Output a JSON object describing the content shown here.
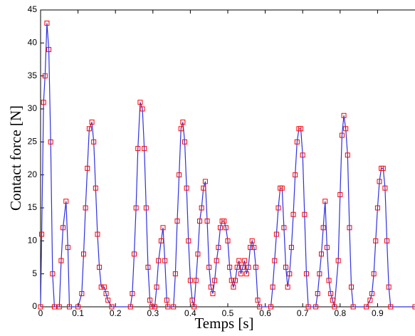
{
  "chart_data": {
    "type": "line",
    "x_label": "Temps [s]",
    "y_label": "Contact force [N]",
    "color": "#3030e0",
    "marker_color": "#ff0000",
    "xlim": [
      0,
      1
    ],
    "ylim": [
      0,
      45
    ],
    "xticks": [
      0,
      0.1,
      0.2,
      0.3,
      0.4,
      0.5,
      0.6,
      0.7,
      0.8,
      0.9
    ],
    "yticks": [
      0,
      5,
      10,
      15,
      20,
      25,
      30,
      35,
      40,
      45
    ],
    "x": [
      0,
      0.003,
      0.008,
      0.012,
      0.017,
      0.022,
      0.027,
      0.032,
      0.037,
      0.05,
      0.055,
      0.06,
      0.068,
      0.073,
      0.077,
      0.1,
      0.11,
      0.115,
      0.12,
      0.125,
      0.13,
      0.137,
      0.142,
      0.147,
      0.152,
      0.157,
      0.162,
      0.17,
      0.175,
      0.18,
      0.19,
      0.24,
      0.245,
      0.25,
      0.255,
      0.26,
      0.266,
      0.272,
      0.277,
      0.282,
      0.287,
      0.292,
      0.297,
      0.305,
      0.31,
      0.315,
      0.322,
      0.327,
      0.332,
      0.337,
      0.34,
      0.355,
      0.36,
      0.365,
      0.37,
      0.375,
      0.38,
      0.385,
      0.39,
      0.395,
      0.4,
      0.405,
      0.41,
      0.415,
      0.42,
      0.425,
      0.43,
      0.435,
      0.44,
      0.445,
      0.45,
      0.455,
      0.46,
      0.465,
      0.47,
      0.475,
      0.48,
      0.485,
      0.49,
      0.495,
      0.5,
      0.505,
      0.51,
      0.515,
      0.52,
      0.525,
      0.53,
      0.535,
      0.54,
      0.545,
      0.55,
      0.555,
      0.56,
      0.565,
      0.57,
      0.575,
      0.58,
      0.585,
      0.615,
      0.62,
      0.625,
      0.63,
      0.635,
      0.64,
      0.645,
      0.65,
      0.655,
      0.66,
      0.665,
      0.67,
      0.675,
      0.68,
      0.685,
      0.69,
      0.695,
      0.7,
      0.705,
      0.71,
      0.715,
      0.735,
      0.74,
      0.745,
      0.75,
      0.755,
      0.76,
      0.765,
      0.77,
      0.775,
      0.78,
      0.785,
      0.795,
      0.8,
      0.805,
      0.81,
      0.815,
      0.82,
      0.825,
      0.83,
      0.835,
      0.87,
      0.88,
      0.885,
      0.89,
      0.895,
      0.9,
      0.905,
      0.91,
      0.915,
      0.92,
      0.925,
      0.93,
      0.935,
      1
    ],
    "values": [
      0,
      11,
      31,
      35,
      43,
      39,
      25,
      5,
      0,
      0,
      7,
      12,
      16,
      9,
      0,
      0,
      2,
      8,
      15,
      21,
      27,
      28,
      25,
      18,
      11,
      6,
      3,
      3,
      2,
      1,
      0,
      0,
      2,
      8,
      15,
      24,
      31,
      30,
      24,
      15,
      6,
      1,
      0,
      0,
      3,
      7,
      10,
      12,
      7,
      1,
      0,
      0,
      5,
      13,
      20,
      27,
      28,
      25,
      18,
      10,
      4,
      1,
      0,
      4,
      8,
      13,
      15,
      18,
      19,
      13,
      6,
      3,
      2,
      4,
      7,
      9,
      12,
      13,
      13,
      12,
      10,
      6,
      4,
      3,
      4,
      6,
      7,
      5,
      6,
      7,
      5,
      6,
      9,
      10,
      9,
      6,
      1,
      0,
      0,
      3,
      7,
      11,
      15,
      18,
      18,
      12,
      6,
      3,
      5,
      9,
      14,
      20,
      25,
      27,
      27,
      23,
      14,
      5,
      0,
      0,
      2,
      5,
      8,
      12,
      16,
      9,
      4,
      2,
      1,
      0,
      7,
      17,
      26,
      29,
      27,
      23,
      12,
      3,
      0,
      0,
      1,
      2,
      5,
      10,
      15,
      19,
      21,
      21,
      18,
      10,
      3,
      0,
      0
    ]
  }
}
